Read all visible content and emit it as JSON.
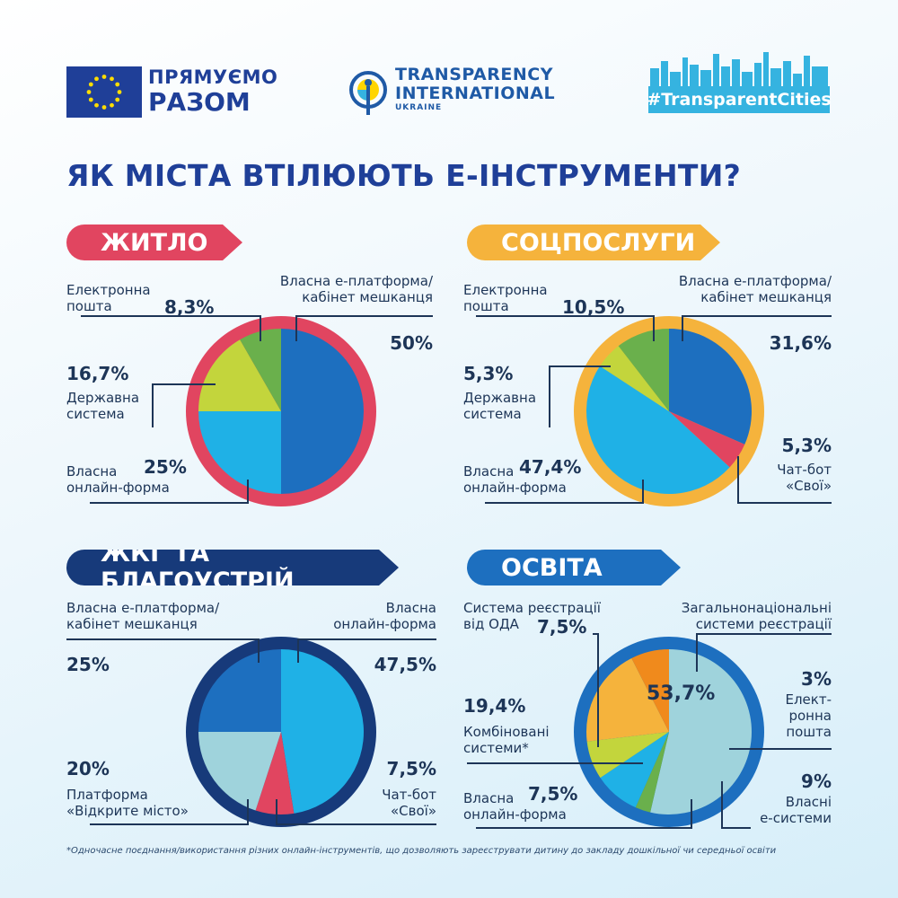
{
  "header": {
    "eu_line1": "ПРЯМУЄМО",
    "eu_line2": "РАЗОМ",
    "ti_line1": "TRANSPARENCY",
    "ti_line2": "INTERNATIONAL",
    "ti_line3": "UKRAINE",
    "tc_label": "#TransparentCities"
  },
  "title": "ЯК МІСТА ВТІЛЮЮТЬ Е-ІНСТРУМЕНТИ?",
  "footnote": "*Одночасне поєднання/використання різних онлайн-інструментів, що дозволяють зареєструвати дитину до закладу дошкільної чи середньої освіти",
  "chart_data": [
    {
      "type": "pie",
      "title": "ЖИТЛО",
      "ring_color": "#e14560",
      "categories": [
        "Власна е-платформа/ кабінет мешканця",
        "Власна онлайн-форма",
        "Державна система",
        "Електронна пошта"
      ],
      "values": [
        50,
        25,
        16.7,
        8.3
      ],
      "value_labels": [
        "50%",
        "25%",
        "16,7%",
        "8,3%"
      ],
      "colors": [
        "#1d6fbf",
        "#1fb1e6",
        "#c3d53c",
        "#6ab04c"
      ],
      "label_texts": {
        "platform": "Власна е-платформа/\nкабінет мешканця",
        "email": "Електронна\nпошта",
        "state": "Державна\nсистема",
        "form": "Власна\nонлайн-форма"
      }
    },
    {
      "type": "pie",
      "title": "СОЦПОСЛУГИ",
      "ring_color": "#f5b33c",
      "categories": [
        "Власна е-платформа/ кабінет мешканця",
        "Чат-бот «Свої»",
        "Власна онлайн-форма",
        "Державна система",
        "Електронна пошта"
      ],
      "values": [
        31.6,
        5.3,
        47.4,
        5.3,
        10.5
      ],
      "value_labels": [
        "31,6%",
        "5,3%",
        "47,4%",
        "5,3%",
        "10,5%"
      ],
      "colors": [
        "#1d6fbf",
        "#e14560",
        "#1fb1e6",
        "#c3d53c",
        "#6ab04c"
      ],
      "label_texts": {
        "platform": "Власна е-платформа/\nкабінет мешканця",
        "bot": "Чат-бот\n«Свої»",
        "form": "Власна\nонлайн-форма",
        "state": "Державна\nсистема",
        "email": "Електронна\nпошта"
      }
    },
    {
      "type": "pie",
      "title": "ЖКГ ТА БЛАГОУСТРІЙ",
      "ring_color": "#173a7a",
      "categories": [
        "Власна онлайн-форма",
        "Чат-бот «Свої»",
        "Платформа «Відкрите місто»",
        "Власна е-платформа/ кабінет мешканця"
      ],
      "values": [
        47.5,
        7.5,
        20,
        25
      ],
      "value_labels": [
        "47,5%",
        "7,5%",
        "20%",
        "25%"
      ],
      "colors": [
        "#1fb1e6",
        "#e14560",
        "#9fd3dc",
        "#1d6fbf"
      ],
      "label_texts": {
        "form": "Власна\nонлайн-форма",
        "bot": "Чат-бот\n«Свої»",
        "open": "Платформа\n«Відкрите місто»",
        "platform": "Власна е-платформа/\nкабінет мешканця"
      }
    },
    {
      "type": "pie",
      "title": "ОСВІТА",
      "ring_color": "#1d6fbf",
      "categories": [
        "Загальнонаціональні системи реєстрації",
        "Електронна пошта",
        "Власні е-системи",
        "Власна онлайн-форма",
        "Комбіновані системи*",
        "Система реєстрації від ОДА"
      ],
      "values": [
        53.7,
        3,
        9,
        7.5,
        19.4,
        7.5
      ],
      "value_labels": [
        "53,7%",
        "3%",
        "9%",
        "7,5%",
        "19,4%",
        "7,5%"
      ],
      "colors": [
        "#9fd3dc",
        "#6ab04c",
        "#1fb1e6",
        "#c3d53c",
        "#f5b33c",
        "#f08a1c"
      ],
      "start_angle_deg": -90,
      "label_texts": {
        "national": "Загальнонаціональні\nсистеми реєстрації",
        "email": "Елект-\nронна\nпошта",
        "esys": "Власні\nе-системи",
        "form": "Власна\nонлайн-форма",
        "combined": "Комбіновані\nсистеми*",
        "oda": "Система реєстрації\nвід ОДА"
      }
    }
  ]
}
